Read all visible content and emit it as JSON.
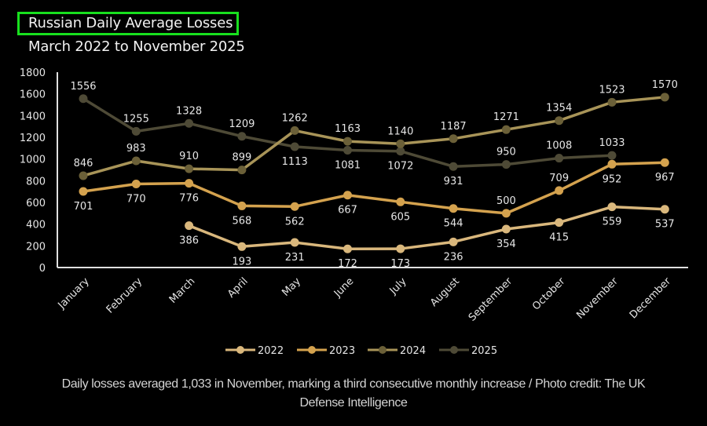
{
  "chart_data": {
    "type": "line",
    "title": "Russian Daily Average Losses",
    "subtitle": "March 2022 to November 2025",
    "xlabel": "",
    "ylabel": "",
    "ylim": [
      0,
      1800
    ],
    "yticks": [
      0,
      200,
      400,
      600,
      800,
      1000,
      1200,
      1400,
      1600,
      1800
    ],
    "grid": false,
    "legend_position": "bottom",
    "categories": [
      "January",
      "February",
      "March",
      "April",
      "May",
      "June",
      "July",
      "August",
      "September",
      "October",
      "November",
      "December"
    ],
    "series": [
      {
        "name": "2022",
        "line_color": "#d9b77c",
        "marker_color": "#d9b77c",
        "values": [
          null,
          null,
          386,
          193,
          231,
          172,
          173,
          236,
          354,
          415,
          559,
          537
        ]
      },
      {
        "name": "2023",
        "line_color": "#d4a24e",
        "marker_color": "#d4a24e",
        "values": [
          701,
          770,
          776,
          568,
          562,
          667,
          605,
          544,
          500,
          709,
          952,
          967
        ]
      },
      {
        "name": "2024",
        "line_color": "#a89458",
        "marker_color": "#6b6038",
        "values": [
          846,
          983,
          910,
          899,
          1262,
          1163,
          1140,
          1187,
          1271,
          1354,
          1523,
          1570
        ]
      },
      {
        "name": "2025",
        "line_color": "#4e4a36",
        "marker_color": "#4e4a36",
        "values": [
          1556,
          1255,
          1328,
          1209,
          1113,
          1081,
          1072,
          931,
          950,
          1008,
          1033,
          null
        ]
      }
    ],
    "label_positions": {
      "2022": [
        "",
        "",
        "below",
        "below",
        "below",
        "below",
        "below",
        "below",
        "below",
        "below",
        "below",
        "below"
      ],
      "2023": [
        "below",
        "below",
        "below",
        "below",
        "below",
        "below",
        "below",
        "below",
        "above",
        "above",
        "below",
        "below"
      ],
      "2024": [
        "above",
        "above",
        "above",
        "above",
        "above",
        "above",
        "above",
        "above",
        "above",
        "above",
        "above",
        "above"
      ],
      "2025": [
        "above",
        "above",
        "above",
        "above",
        "below",
        "below",
        "below",
        "below",
        "above",
        "above",
        "above",
        ""
      ]
    }
  },
  "caption": {
    "line1": "Daily losses averaged 1,033 in November, marking a third consecutive monthly increase / Photo credit: The UK",
    "line2": "Defense Intelligence"
  },
  "colors": {
    "highlight_box": "#18e01e",
    "axis": "#e0e0e0",
    "background": "#000000"
  }
}
